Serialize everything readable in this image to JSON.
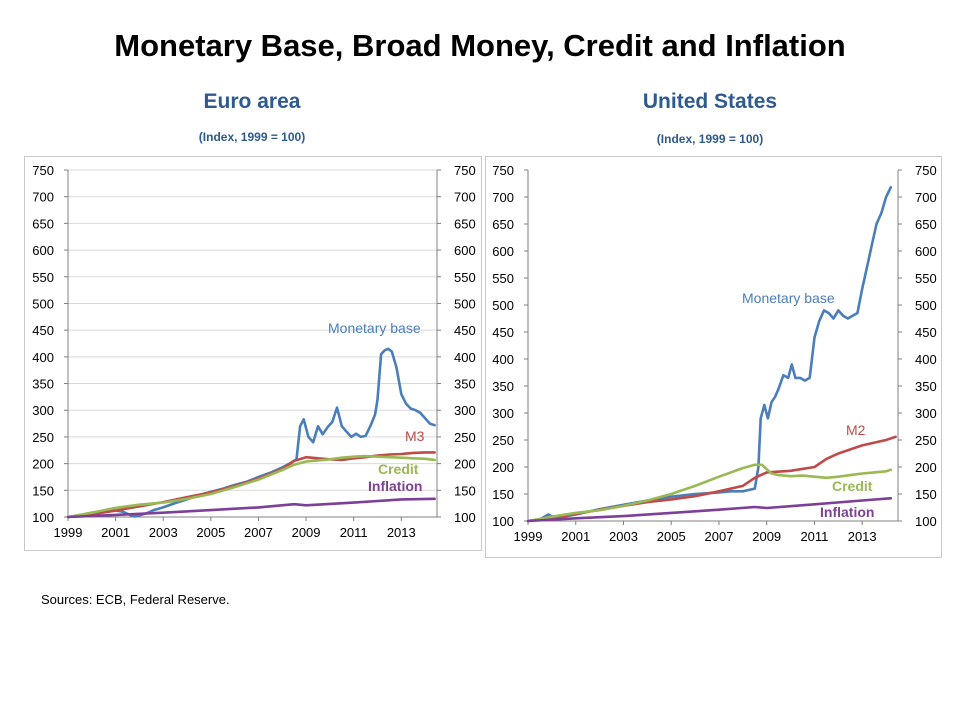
{
  "title": "Monetary Base, Broad Money, Credit and Inflation",
  "sources": "Sources: ECB, Federal Reserve.",
  "colors": {
    "monetary_base": "#4a7ebb",
    "broad_money": "#be4b48",
    "credit": "#98b954",
    "inflation": "#7d3f98",
    "panel_title": "#2e5a8f"
  },
  "chart_data": [
    {
      "type": "line",
      "title": "Euro area",
      "subtitle": "(Index, 1999 = 100)",
      "ylim": [
        100,
        750
      ],
      "yticks": [
        "100",
        "150",
        "200",
        "250",
        "300",
        "350",
        "400",
        "450",
        "500",
        "550",
        "600",
        "650",
        "700",
        "750"
      ],
      "xlim": [
        1999,
        2014.5
      ],
      "xticks": [
        "1999",
        "2001",
        "2003",
        "2005",
        "2007",
        "2009",
        "2011",
        "2013"
      ],
      "grid": true,
      "dual_axis_labels": true,
      "series": [
        {
          "name": "Monetary base",
          "x": [
            1999,
            1999.5,
            2000,
            2000.5,
            2001,
            2001.3,
            2001.6,
            2001.8,
            2002,
            2002.3,
            2002.6,
            2003,
            2003.5,
            2004,
            2004.5,
            2005,
            2005.5,
            2006,
            2006.5,
            2007,
            2007.5,
            2008,
            2008.3,
            2008.6,
            2008.75,
            2008.9,
            2009.1,
            2009.3,
            2009.5,
            2009.7,
            2009.9,
            2010.1,
            2010.3,
            2010.5,
            2010.7,
            2010.9,
            2011.1,
            2011.3,
            2011.5,
            2011.7,
            2011.9,
            2012.0,
            2012.15,
            2012.3,
            2012.45,
            2012.6,
            2012.8,
            2013.0,
            2013.2,
            2013.4,
            2013.6,
            2013.8,
            2014.0,
            2014.2,
            2014.4
          ],
          "values": [
            100,
            103,
            108,
            110,
            112,
            110,
            104,
            101,
            103,
            107,
            113,
            118,
            126,
            133,
            141,
            147,
            153,
            160,
            166,
            175,
            183,
            193,
            200,
            208,
            270,
            283,
            250,
            240,
            270,
            255,
            268,
            278,
            305,
            270,
            260,
            250,
            256,
            250,
            252,
            270,
            292,
            320,
            405,
            412,
            415,
            410,
            380,
            330,
            312,
            303,
            300,
            295,
            285,
            275,
            272
          ]
        },
        {
          "name": "M3",
          "x": [
            1999,
            2000,
            2001,
            2002,
            2003,
            2004,
            2005,
            2006,
            2007,
            2008,
            2008.5,
            2009,
            2009.5,
            2010,
            2010.5,
            2011,
            2011.5,
            2012,
            2012.5,
            2013,
            2013.5,
            2014,
            2014.4
          ],
          "values": [
            100,
            105,
            112,
            120,
            128,
            137,
            146,
            158,
            172,
            190,
            205,
            212,
            210,
            208,
            207,
            210,
            212,
            215,
            217,
            218,
            220,
            221,
            221
          ]
        },
        {
          "name": "Credit",
          "x": [
            1999,
            2000,
            2001,
            2002,
            2003,
            2004,
            2005,
            2006,
            2007,
            2008,
            2008.5,
            2009,
            2009.5,
            2010,
            2010.5,
            2011,
            2011.5,
            2012,
            2012.5,
            2013,
            2013.5,
            2014,
            2014.4
          ],
          "values": [
            100,
            108,
            117,
            123,
            127,
            134,
            143,
            156,
            170,
            188,
            198,
            204,
            206,
            208,
            211,
            213,
            214,
            213,
            212,
            211,
            210,
            209,
            207
          ]
        },
        {
          "name": "Inflation",
          "x": [
            1999,
            2001,
            2003,
            2005,
            2007,
            2008.5,
            2009,
            2011,
            2012,
            2013,
            2014.4
          ],
          "values": [
            100,
            104,
            108,
            113,
            118,
            124,
            122,
            127,
            130,
            133,
            134
          ]
        }
      ]
    },
    {
      "type": "line",
      "title": "United States",
      "subtitle": "(Index, 1999 = 100)",
      "ylim": [
        100,
        750
      ],
      "yticks": [
        "100",
        "150",
        "200",
        "250",
        "300",
        "350",
        "400",
        "450",
        "500",
        "550",
        "600",
        "650",
        "700",
        "750"
      ],
      "xlim": [
        1999,
        2014.5
      ],
      "xticks": [
        "1999",
        "2001",
        "2003",
        "2005",
        "2007",
        "2009",
        "2011",
        "2013"
      ],
      "grid": false,
      "dual_axis_labels": true,
      "series": [
        {
          "name": "Monetary base",
          "x": [
            1999,
            1999.5,
            1999.85,
            2000.1,
            2000.5,
            2001,
            2002,
            2003,
            2004,
            2005,
            2006,
            2007,
            2007.5,
            2008,
            2008.5,
            2008.65,
            2008.75,
            2008.9,
            2009.05,
            2009.2,
            2009.35,
            2009.5,
            2009.7,
            2009.9,
            2010.05,
            2010.2,
            2010.4,
            2010.6,
            2010.8,
            2011.0,
            2011.2,
            2011.4,
            2011.6,
            2011.8,
            2012.0,
            2012.2,
            2012.4,
            2012.6,
            2012.8,
            2013.0,
            2013.2,
            2013.4,
            2013.6,
            2013.8,
            2014.0,
            2014.2
          ],
          "values": [
            100,
            103,
            112,
            106,
            108,
            112,
            122,
            130,
            138,
            145,
            150,
            153,
            155,
            155,
            160,
            200,
            290,
            315,
            290,
            320,
            330,
            345,
            370,
            365,
            390,
            365,
            365,
            360,
            365,
            440,
            470,
            490,
            485,
            475,
            490,
            480,
            475,
            480,
            485,
            530,
            570,
            610,
            650,
            670,
            700,
            718
          ]
        },
        {
          "name": "M2",
          "x": [
            1999,
            2000,
            2001,
            2002,
            2003,
            2004,
            2005,
            2006,
            2007,
            2008,
            2008.5,
            2009,
            2010,
            2011,
            2011.5,
            2012,
            2013,
            2014,
            2014.4
          ],
          "values": [
            100,
            105,
            113,
            121,
            128,
            135,
            140,
            146,
            155,
            165,
            180,
            190,
            193,
            200,
            215,
            225,
            240,
            250,
            256
          ]
        },
        {
          "name": "Credit",
          "x": [
            1999,
            2000,
            2001,
            2002,
            2003,
            2004,
            2005,
            2006,
            2007,
            2008,
            2008.5,
            2008.8,
            2009.2,
            2009.5,
            2010,
            2010.5,
            2011,
            2011.5,
            2012,
            2012.5,
            2013,
            2013.5,
            2014,
            2014.2
          ],
          "values": [
            100,
            108,
            115,
            120,
            128,
            138,
            150,
            165,
            182,
            198,
            204,
            204,
            188,
            185,
            183,
            184,
            182,
            180,
            182,
            185,
            188,
            190,
            192,
            195
          ]
        },
        {
          "name": "Inflation",
          "x": [
            1999,
            2001,
            2003,
            2005,
            2007,
            2008.5,
            2009,
            2011,
            2013,
            2014.2
          ],
          "values": [
            100,
            105,
            109,
            115,
            121,
            126,
            124,
            131,
            138,
            142
          ]
        }
      ]
    }
  ]
}
